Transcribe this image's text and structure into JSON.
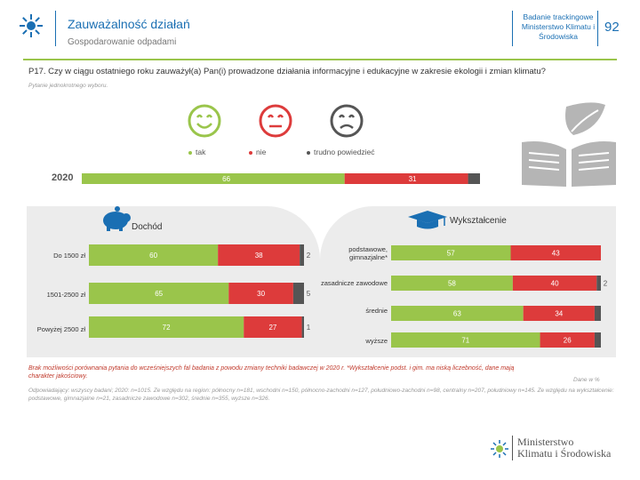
{
  "header": {
    "title": "Zauważalność działań",
    "subtitle": "Gospodarowanie odpadami",
    "right_text": "Badanie trackingowe Ministerstwo Klimatu i Środowiska",
    "page_number": "92"
  },
  "question": "P17. Czy w ciągu ostatniego roku zauważył(a) Pan(i) prowadzone działania informacyjne i edukacyjne w zakresie ekologii i zmian klimatu?",
  "note": "Pytanie jednokrotnego wyboru.",
  "colors": {
    "green": "#9ac54b",
    "red": "#dd3b3b",
    "gray": "#555555",
    "accent_blue": "#1a6fb3"
  },
  "chart_data": [
    {
      "type": "bar",
      "orientation": "horizontal-stacked",
      "title": "2020",
      "legend": [
        "tak",
        "nie",
        "trudno powiedzieć"
      ],
      "categories": [
        "2020"
      ],
      "series": [
        {
          "name": "tak",
          "values": [
            66
          ]
        },
        {
          "name": "nie",
          "values": [
            31
          ]
        },
        {
          "name": "trudno powiedzieć",
          "values": [
            3
          ]
        }
      ]
    },
    {
      "type": "bar",
      "orientation": "horizontal-stacked",
      "title": "Dochód",
      "categories": [
        "Do 1500 zł",
        "1501-2500 zł",
        "Powyżej 2500 zł"
      ],
      "series": [
        {
          "name": "tak",
          "values": [
            60,
            65,
            72
          ]
        },
        {
          "name": "nie",
          "values": [
            38,
            30,
            27
          ]
        },
        {
          "name": "trudno powiedzieć",
          "values": [
            2,
            5,
            1
          ]
        }
      ],
      "labels_shown": [
        [
          "60",
          "38",
          "2"
        ],
        [
          "65",
          "30",
          "5"
        ],
        [
          "72",
          "27",
          "1"
        ]
      ]
    },
    {
      "type": "bar",
      "orientation": "horizontal-stacked",
      "title": "Wykształcenie",
      "categories": [
        "podstawowe, gimnazjalne*",
        "zasadnicze zawodowe",
        "średnie",
        "wyższe"
      ],
      "series": [
        {
          "name": "tak",
          "values": [
            57,
            58,
            63,
            71
          ]
        },
        {
          "name": "nie",
          "values": [
            43,
            40,
            34,
            26
          ]
        },
        {
          "name": "trudno powiedzieć",
          "values": [
            0,
            2,
            3,
            3
          ]
        }
      ],
      "labels_shown": [
        [
          "57",
          "43",
          ""
        ],
        [
          "58",
          "40",
          "2"
        ],
        [
          "63",
          "34",
          ""
        ],
        [
          "71",
          "26",
          ""
        ]
      ]
    }
  ],
  "footnotes": {
    "red": "Brak możliwości porównania pytania do wcześniejszych fal badania z powodu zmiany techniki badawczej w 2020 r. *Wykształcenie podst. i gim. ma niską liczebność, dane mają charakter jakościowy.",
    "source": "Dane w %",
    "sample": "Odpowiadający: wszyscy badani; 2020: n=1015. Ze względu na region: północny n=181, wschodni n=150, północno-zachodni n=127, południowo-zachodni n=98, centralny n=207, południowy n=145. Ze względu na wykształcenie: podstawowe, gimnazjalne n=21, zasadnicze zawodowe n=302, średnie n=355, wyższe n=326."
  },
  "ministry": {
    "name_line1": "Ministerstwo",
    "name_line2": "Klimatu i Środowiska"
  }
}
